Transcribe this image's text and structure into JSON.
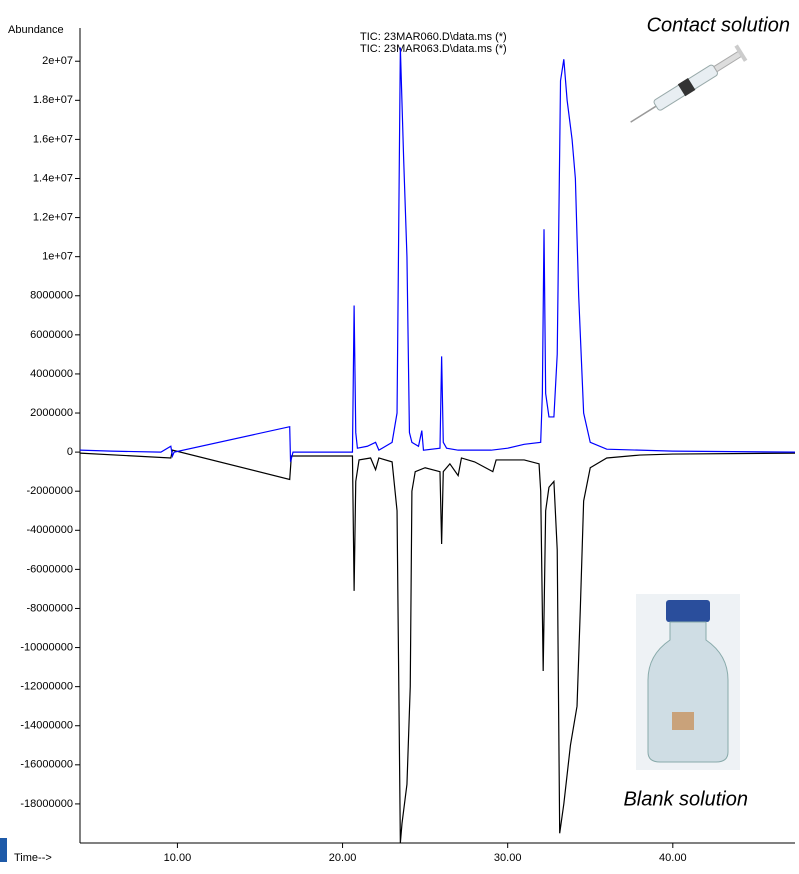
{
  "chart_data": {
    "type": "line",
    "y_label": "Abundance",
    "x_label": "Time-->",
    "annotations": [
      "Contact solution",
      "Blank solution"
    ],
    "xlim": [
      4.1,
      47.4
    ],
    "ylim": [
      -20000000,
      21700000
    ],
    "xticks": [
      {
        "value": 10,
        "label": "10.00"
      },
      {
        "value": 20,
        "label": "20.00"
      },
      {
        "value": 30,
        "label": "30.00"
      },
      {
        "value": 40,
        "label": "40.00"
      }
    ],
    "yticks": [
      {
        "value": 20000000,
        "label": "2e+07"
      },
      {
        "value": 18000000,
        "label": "1.8e+07"
      },
      {
        "value": 16000000,
        "label": "1.6e+07"
      },
      {
        "value": 14000000,
        "label": "1.4e+07"
      },
      {
        "value": 12000000,
        "label": "1.2e+07"
      },
      {
        "value": 10000000,
        "label": "1e+07"
      },
      8000000,
      6000000,
      4000000,
      2000000,
      0,
      -2000000,
      -4000000,
      -6000000,
      -8000000,
      -10000000,
      -12000000,
      -14000000,
      -16000000,
      -18000000
    ],
    "series": [
      {
        "name": "TIC: 23MAR060.D\\data.ms (*)",
        "color": "#000000",
        "x": [
          4.1,
          9.6,
          9.7,
          16.8,
          16.9,
          20.6,
          20.7,
          20.8,
          21.0,
          21.7,
          22.0,
          22.2,
          23.0,
          23.3,
          23.5,
          23.6,
          23.9,
          24.1,
          24.2,
          24.4,
          25.0,
          25.9,
          26.0,
          26.1,
          26.5,
          27.0,
          27.2,
          28.0,
          29.1,
          29.3,
          31.0,
          31.9,
          32.0,
          32.15,
          32.3,
          32.5,
          32.8,
          33.0,
          33.15,
          33.4,
          33.8,
          34.2,
          34.4,
          34.6,
          35.0,
          36.0,
          38.0,
          40.0,
          47.4
        ],
        "values": [
          -50000,
          -300000,
          100000,
          -1400000,
          -200000,
          -200000,
          -7100000,
          -1500000,
          -400000,
          -300000,
          -900000,
          -300000,
          -500000,
          -3000000,
          -20000000,
          -19000000,
          -17000000,
          -12000000,
          -2000000,
          -1000000,
          -800000,
          -1000000,
          -4700000,
          -1000000,
          -600000,
          -1200000,
          -300000,
          -500000,
          -1000000,
          -400000,
          -400000,
          -600000,
          -2000000,
          -11200000,
          -3000000,
          -1800000,
          -1500000,
          -5000000,
          -19500000,
          -18000000,
          -15000000,
          -13000000,
          -8000000,
          -2500000,
          -800000,
          -300000,
          -150000,
          -100000,
          -50000
        ]
      },
      {
        "name": "TIC: 23MAR063.D\\data.ms (*)",
        "color": "#0000ff",
        "x": [
          4.1,
          6.0,
          9.0,
          9.6,
          9.7,
          9.8,
          16.8,
          16.85,
          17.0,
          20.6,
          20.7,
          20.8,
          20.9,
          21.5,
          22.0,
          22.2,
          23.0,
          23.3,
          23.5,
          23.7,
          23.9,
          24.05,
          24.2,
          24.6,
          24.8,
          24.9,
          25.9,
          26.0,
          26.1,
          26.3,
          27.0,
          29.0,
          30.0,
          31.0,
          32.0,
          32.1,
          32.2,
          32.3,
          32.5,
          32.8,
          33.0,
          33.2,
          33.4,
          33.6,
          33.9,
          34.1,
          34.3,
          34.6,
          35.0,
          36.0,
          40.0,
          47.4
        ],
        "values": [
          100000,
          50000,
          0,
          300000,
          -200000,
          0,
          1300000,
          -500000,
          0,
          0,
          7500000,
          1000000,
          200000,
          300000,
          500000,
          100000,
          500000,
          2000000,
          20700000,
          15000000,
          10000000,
          1000000,
          500000,
          300000,
          1100000,
          100000,
          200000,
          4900000,
          500000,
          200000,
          100000,
          100000,
          200000,
          400000,
          500000,
          3000000,
          11400000,
          3000000,
          1800000,
          1800000,
          5000000,
          19000000,
          20100000,
          18000000,
          16000000,
          14000000,
          8000000,
          2000000,
          500000,
          150000,
          50000,
          0
        ]
      }
    ]
  }
}
